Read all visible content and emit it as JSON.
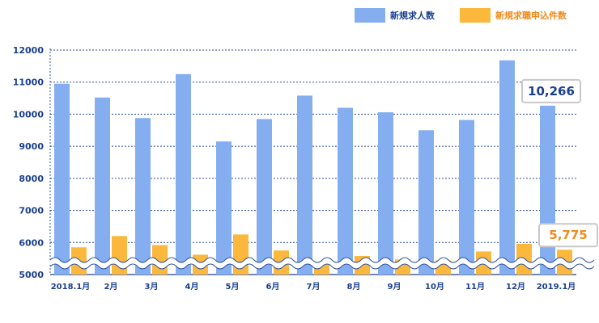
{
  "chart_data": {
    "type": "bar",
    "categories": [
      "2018.1月",
      "2月",
      "3月",
      "4月",
      "5月",
      "6月",
      "7月",
      "8月",
      "9月",
      "10月",
      "11月",
      "12月",
      "2019.1月"
    ],
    "series": [
      {
        "name": "新規求人数",
        "color": "#85aef0",
        "values": [
          10950,
          10520,
          9880,
          11250,
          9150,
          9850,
          10580,
          10200,
          10060,
          9500,
          9820,
          11680,
          10266
        ]
      },
      {
        "name": "新規求職申込件数",
        "color": "#fbb83c",
        "values": [
          5850,
          6200,
          5920,
          5620,
          6250,
          5750,
          5370,
          5580,
          5470,
          5440,
          5720,
          5960,
          5775
        ]
      }
    ],
    "ylim": [
      5000,
      12000
    ],
    "yticks": [
      5000,
      6000,
      7000,
      8000,
      9000,
      10000,
      11000,
      12000
    ],
    "axis_break": true,
    "grid": true,
    "legend_position": "top-right",
    "callouts": [
      {
        "series": 0,
        "index": 12,
        "text": "10,266",
        "color": "#1a3f8f"
      },
      {
        "series": 1,
        "index": 12,
        "text": "5,775",
        "color": "#f08a1c"
      }
    ]
  }
}
